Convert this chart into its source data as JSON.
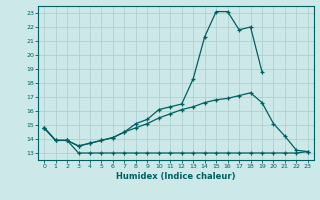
{
  "xlabel": "Humidex (Indice chaleur)",
  "xlim": [
    -0.5,
    23.5
  ],
  "ylim": [
    12.5,
    23.5
  ],
  "yticks": [
    13,
    14,
    15,
    16,
    17,
    18,
    19,
    20,
    21,
    22,
    23
  ],
  "xticks": [
    0,
    1,
    2,
    3,
    4,
    5,
    6,
    7,
    8,
    9,
    10,
    11,
    12,
    13,
    14,
    15,
    16,
    17,
    18,
    19,
    20,
    21,
    22,
    23
  ],
  "bg_color": "#cde8e8",
  "grid_color": "#b0d0d0",
  "line_color": "#006060",
  "curve1_x": [
    0,
    1,
    2,
    3,
    4,
    5,
    6,
    7,
    8,
    9,
    10,
    11,
    12,
    13,
    14,
    15,
    16,
    17,
    18,
    19
  ],
  "curve1_y": [
    14.8,
    13.9,
    13.9,
    13.5,
    13.7,
    13.9,
    14.1,
    14.5,
    15.1,
    15.4,
    16.1,
    16.3,
    16.5,
    18.3,
    21.3,
    23.1,
    23.1,
    21.8,
    22.0,
    18.8
  ],
  "curve2_x": [
    0,
    1,
    2,
    3,
    4,
    5,
    6,
    7,
    8,
    9,
    10,
    11,
    12,
    13,
    14,
    15,
    16,
    17,
    18,
    19,
    20,
    21,
    22,
    23
  ],
  "curve2_y": [
    14.8,
    13.9,
    13.9,
    13.5,
    13.7,
    13.9,
    14.1,
    14.5,
    14.8,
    15.1,
    15.5,
    15.8,
    16.1,
    16.3,
    16.6,
    16.8,
    16.9,
    17.1,
    17.3,
    16.6,
    15.1,
    14.2,
    13.2,
    13.1
  ],
  "curve3_x": [
    0,
    1,
    2,
    3,
    4,
    5,
    6,
    7,
    8,
    9,
    10,
    11,
    12,
    13,
    14,
    15,
    16,
    17,
    18,
    19,
    20,
    21,
    22,
    23
  ],
  "curve3_y": [
    14.8,
    13.9,
    13.9,
    13.0,
    13.0,
    13.0,
    13.0,
    13.0,
    13.0,
    13.0,
    13.0,
    13.0,
    13.0,
    13.0,
    13.0,
    13.0,
    13.0,
    13.0,
    13.0,
    13.0,
    13.0,
    13.0,
    13.0,
    13.1
  ]
}
